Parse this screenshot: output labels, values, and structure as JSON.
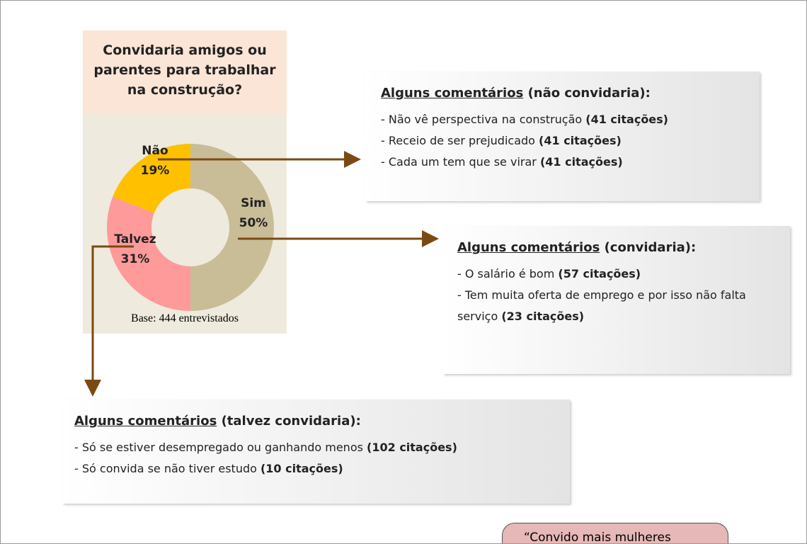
{
  "chart_data": {
    "type": "donut",
    "title": "Convidaria amigos ou parentes para trabalhar na construção?",
    "categories": [
      "Sim",
      "Talvez",
      "Não"
    ],
    "values": [
      50,
      31,
      19
    ],
    "value_labels": [
      "50%",
      "31%",
      "19%"
    ],
    "colors": [
      "#c9bd98",
      "#ff9a9a",
      "#ffc000"
    ],
    "note": "Base: 444 entrevistados"
  },
  "comments": [
    {
      "heading": "Alguns comentários",
      "tail": " (não convidaria):",
      "items": [
        {
          "text": "- Não vê perspectiva na construção ",
          "citations": "(41 citações)"
        },
        {
          "text": "- Receio de ser prejudicado ",
          "citations": "(41 citações)"
        },
        {
          "text": "- Cada um tem que se virar ",
          "citations": "(41 citações)"
        }
      ]
    },
    {
      "heading": "Alguns comentários",
      "tail": " (convidaria):",
      "items": [
        {
          "text": "- O salário é bom ",
          "citations": "(57 citações)"
        },
        {
          "text": "- Tem muita oferta de emprego e por isso não falta serviço ",
          "citations": "(23 citações)"
        }
      ]
    },
    {
      "heading": "Alguns comentários",
      "tail": " (talvez convidaria):",
      "items": [
        {
          "text": "- Só se estiver desempregado ou ganhando menos ",
          "citations": "(102 citações)"
        },
        {
          "text": "- Só convida se não tiver estudo ",
          "citations": "(10 citações)"
        }
      ]
    }
  ],
  "quote": "“Convido mais mulheres"
}
